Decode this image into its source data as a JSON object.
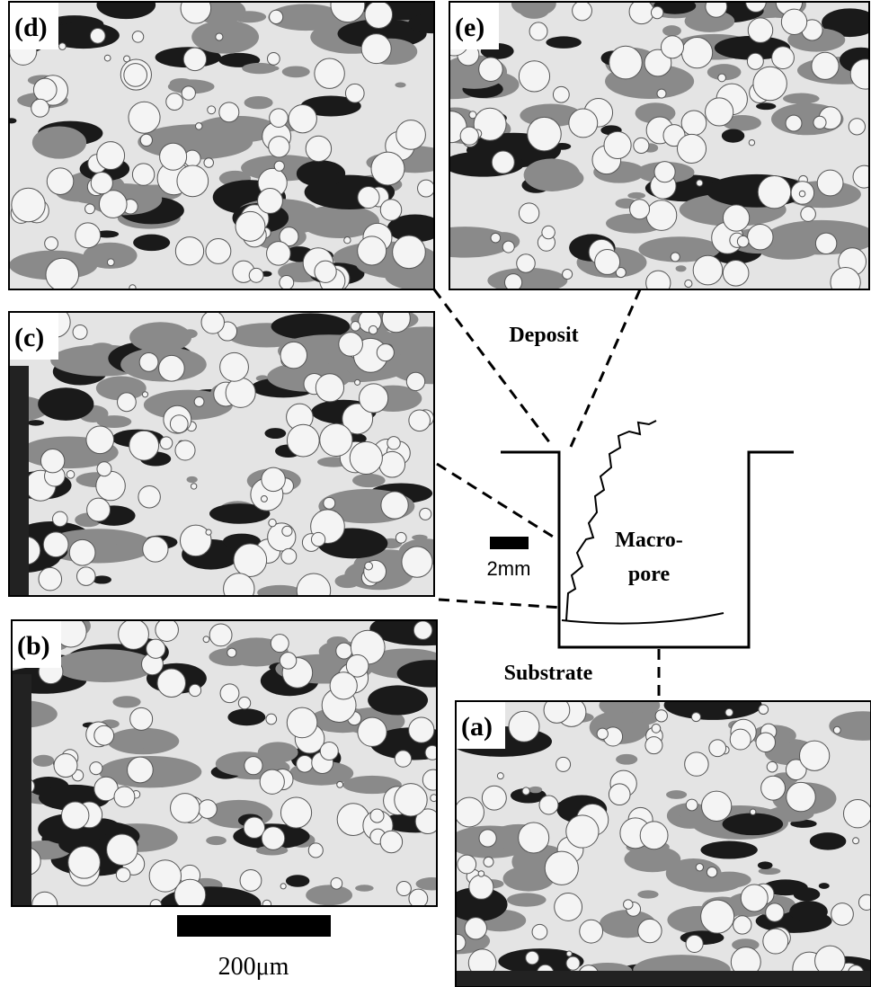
{
  "panels": [
    {
      "label": "(d)"
    },
    {
      "label": "(e)"
    },
    {
      "label": "(c)"
    },
    {
      "label": "(b)"
    },
    {
      "label": "(a)"
    }
  ],
  "schematic": {
    "deposit": "Deposit",
    "substrate": "Substrate",
    "pore_line1": "Macro-",
    "pore_line2": "pore",
    "scale": "2mm"
  },
  "micrograph_scale": "200μm"
}
